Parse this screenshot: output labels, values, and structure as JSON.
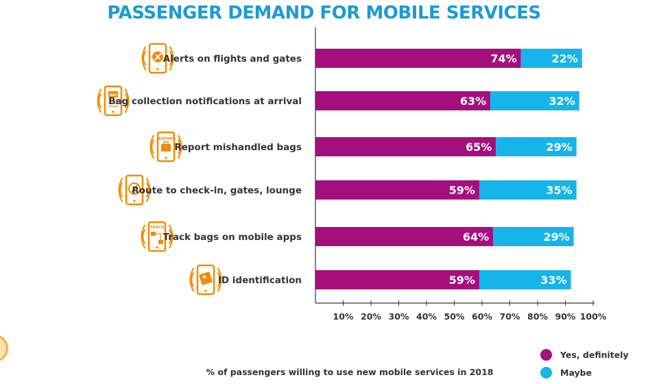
{
  "chart_data": {
    "type": "bar",
    "orientation": "horizontal",
    "stacked": true,
    "title": "PASSENGER DEMAND FOR MOBILE SERVICES",
    "xlabel": "% of passengers willing to use new mobile services in 2018",
    "ylabel": "",
    "categories": [
      "Alerts on flights and gates",
      "Bag collection notifications at arrival",
      "Report mishandled bags",
      "Route to check-in, gates, lounge",
      "Track bags on mobile apps",
      "ID identification"
    ],
    "icons": [
      "plane-phone-icon",
      "bag-notification-phone-icon",
      "report-bag-phone-icon",
      "compass-phone-icon",
      "track-bag-phone-icon",
      "id-card-phone-icon"
    ],
    "icon_texts": [
      "",
      "BAG",
      "REPORT",
      "",
      "TRACK",
      ""
    ],
    "series": [
      {
        "name": "Yes, definitely",
        "color": "#a50f7d",
        "values": [
          74,
          63,
          65,
          59,
          64,
          59
        ],
        "labels": [
          "74%",
          "63%",
          "65%",
          "59%",
          "64%",
          "59%"
        ]
      },
      {
        "name": "Maybe",
        "color": "#17b4ea",
        "values": [
          22,
          32,
          29,
          35,
          29,
          33
        ],
        "labels": [
          "22%",
          "32%",
          "29%",
          "35%",
          "29%",
          "33%"
        ]
      }
    ],
    "xlim": [
      0,
      100
    ],
    "xticks": [
      10,
      20,
      30,
      40,
      50,
      60,
      70,
      80,
      90,
      100
    ],
    "xtick_labels": [
      "10%",
      "20%",
      "30%",
      "40%",
      "50%",
      "60%",
      "70%",
      "80%",
      "90%",
      "100%"
    ],
    "legend_position": "bottom-right",
    "grid": false,
    "colors": {
      "title": "#1b9ad6",
      "icon": "#f08a00",
      "text": "#333333",
      "axis": "#333333"
    }
  }
}
